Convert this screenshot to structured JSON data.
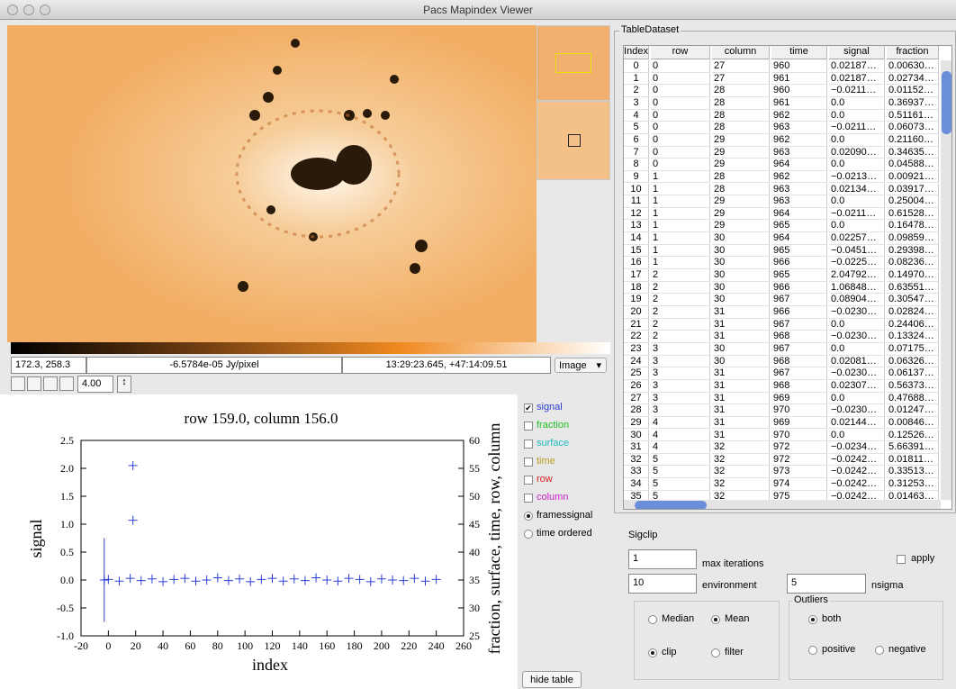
{
  "window": {
    "title": "Pacs Mapindex Viewer"
  },
  "image_panel": {
    "status": {
      "pixel": "172.3, 258.3",
      "value": "-6.5784e-05 Jy/pixel",
      "world": "13:29:23.645, +47:14:09.51"
    },
    "mode": "Image",
    "zoom": "4.00"
  },
  "plot": {
    "title": "row 159.0, column 156.0",
    "xlabel": "index",
    "ylabel": "signal",
    "y2label": "fraction, surface, time, row, column",
    "xlim": [
      -20,
      260
    ],
    "ylim": [
      -1.0,
      2.5
    ],
    "y2lim": [
      25,
      60
    ],
    "xticks": [
      -20,
      0,
      20,
      40,
      60,
      80,
      100,
      120,
      140,
      160,
      180,
      200,
      220,
      240,
      260
    ],
    "yticks": [
      2.5,
      {
        "value": 2.0,
        "label": "2.0"
      },
      1.5,
      {
        "value": 1.0,
        "label": "1.0"
      },
      0.5,
      {
        "value": 0.0,
        "label": "0.0"
      },
      -0.5,
      {
        "value": -1.0,
        "label": "-1.0"
      }
    ],
    "y2ticks": [
      60,
      55,
      50,
      45,
      40,
      35,
      30,
      25
    ],
    "series": {
      "color": "#2a3fd0",
      "x": [
        -3,
        18,
        18,
        0,
        8,
        16,
        24,
        32,
        40,
        48,
        56,
        64,
        72,
        80,
        88,
        96,
        104,
        112,
        120,
        128,
        136,
        144,
        152,
        160,
        168,
        176,
        184,
        192,
        200,
        208,
        216,
        224,
        232,
        240
      ],
      "y": [
        0.0,
        2.05,
        1.07,
        0.01,
        -0.02,
        0.03,
        -0.01,
        0.02,
        -0.03,
        0.01,
        0.03,
        -0.02,
        0.0,
        0.04,
        -0.01,
        0.02,
        -0.03,
        0.01,
        0.03,
        -0.02,
        0.02,
        -0.01,
        0.04,
        0.0,
        -0.02,
        0.03,
        0.01,
        -0.03,
        0.02,
        0.0,
        -0.01,
        0.03,
        -0.02,
        0.01
      ]
    },
    "spike": {
      "x": -3,
      "ymin": -0.75,
      "ymax": 0.75
    }
  },
  "legend": {
    "checks": [
      {
        "label": "signal",
        "color": "#2a3fd0",
        "checked": true
      },
      {
        "label": "fraction",
        "color": "#22c022",
        "checked": false
      },
      {
        "label": "surface",
        "color": "#20b8c0",
        "checked": false
      },
      {
        "label": "time",
        "color": "#b8a020",
        "checked": false
      },
      {
        "label": "row",
        "color": "#e02020",
        "checked": false
      },
      {
        "label": "column",
        "color": "#d020d0",
        "checked": false
      }
    ],
    "radios": [
      {
        "label": "framessignal",
        "checked": true
      },
      {
        "label": "time ordered",
        "checked": false
      }
    ]
  },
  "hide_button": "hide table",
  "table": {
    "title": "TableDataset",
    "columns": [
      "Index",
      "row",
      "column",
      "time",
      "signal",
      "fraction"
    ],
    "rows": [
      [
        "0",
        "0",
        "27",
        "960",
        "0.02187…",
        "0.00630…"
      ],
      [
        "1",
        "0",
        "27",
        "961",
        "0.02187…",
        "0.02734…"
      ],
      [
        "2",
        "0",
        "28",
        "960",
        "−0.0211…",
        "0.01152…"
      ],
      [
        "3",
        "0",
        "28",
        "961",
        "0.0",
        "0.36937…"
      ],
      [
        "4",
        "0",
        "28",
        "962",
        "0.0",
        "0.51161…"
      ],
      [
        "5",
        "0",
        "28",
        "963",
        "−0.0211…",
        "0.06073…"
      ],
      [
        "6",
        "0",
        "29",
        "962",
        "0.0",
        "0.21160…"
      ],
      [
        "7",
        "0",
        "29",
        "963",
        "0.02090…",
        "0.34635…"
      ],
      [
        "8",
        "0",
        "29",
        "964",
        "0.0",
        "0.04588…"
      ],
      [
        "9",
        "1",
        "28",
        "962",
        "−0.0213…",
        "0.00921…"
      ],
      [
        "10",
        "1",
        "28",
        "963",
        "0.02134…",
        "0.03917…"
      ],
      [
        "11",
        "1",
        "29",
        "963",
        "0.0",
        "0.25004…"
      ],
      [
        "12",
        "1",
        "29",
        "964",
        "−0.0211…",
        "0.61528…"
      ],
      [
        "13",
        "1",
        "29",
        "965",
        "0.0",
        "0.16478…"
      ],
      [
        "14",
        "1",
        "30",
        "964",
        "0.02257…",
        "0.09859…"
      ],
      [
        "15",
        "1",
        "30",
        "965",
        "−0.0451…",
        "0.29398…"
      ],
      [
        "16",
        "1",
        "30",
        "966",
        "−0.0225…",
        "0.08236…"
      ],
      [
        "17",
        "2",
        "30",
        "965",
        "2.04792…",
        "0.14970…"
      ],
      [
        "18",
        "2",
        "30",
        "966",
        "1.06848…",
        "0.63551…"
      ],
      [
        "19",
        "2",
        "30",
        "967",
        "0.08904…",
        "0.30547…"
      ],
      [
        "20",
        "2",
        "31",
        "966",
        "−0.0230…",
        "0.02824…"
      ],
      [
        "21",
        "2",
        "31",
        "967",
        "0.0",
        "0.24406…"
      ],
      [
        "22",
        "2",
        "31",
        "968",
        "−0.0230…",
        "0.13324…"
      ],
      [
        "23",
        "3",
        "30",
        "967",
        "0.0",
        "0.07175…"
      ],
      [
        "24",
        "3",
        "30",
        "968",
        "0.02081…",
        "0.06326…"
      ],
      [
        "25",
        "3",
        "31",
        "967",
        "−0.0230…",
        "0.06137…"
      ],
      [
        "26",
        "3",
        "31",
        "968",
        "0.02307…",
        "0.56373…"
      ],
      [
        "27",
        "3",
        "31",
        "969",
        "0.0",
        "0.47688…"
      ],
      [
        "28",
        "3",
        "31",
        "970",
        "−0.0230…",
        "0.01247…"
      ],
      [
        "29",
        "4",
        "31",
        "969",
        "0.02144…",
        "0.00846…"
      ],
      [
        "30",
        "4",
        "31",
        "970",
        "0.0",
        "0.12526…"
      ],
      [
        "31",
        "4",
        "32",
        "972",
        "−0.0234…",
        "5.66391…"
      ],
      [
        "32",
        "5",
        "32",
        "972",
        "−0.0242…",
        "0.01811…"
      ],
      [
        "33",
        "5",
        "32",
        "973",
        "−0.0242…",
        "0.33513…"
      ],
      [
        "34",
        "5",
        "32",
        "974",
        "−0.0242…",
        "0.31253…"
      ],
      [
        "35",
        "5",
        "32",
        "975",
        "−0.0242…",
        "0.01463…"
      ]
    ]
  },
  "sigclip": {
    "title": "Sigclip",
    "max_iterations": {
      "value": "1",
      "label": "max iterations"
    },
    "apply": "apply",
    "environment": {
      "value": "10",
      "label": "environment"
    },
    "nsigma": {
      "value": "5",
      "label": "nsigma"
    },
    "method": [
      {
        "label": "Median",
        "checked": false
      },
      {
        "label": "Mean",
        "checked": true
      },
      {
        "label": "clip",
        "checked": true
      },
      {
        "label": "filter",
        "checked": false
      }
    ],
    "outliers": {
      "title": "Outliers",
      "options": [
        {
          "label": "both",
          "checked": true
        },
        {
          "label": "positive",
          "checked": false
        },
        {
          "label": "negative",
          "checked": false
        }
      ]
    }
  }
}
